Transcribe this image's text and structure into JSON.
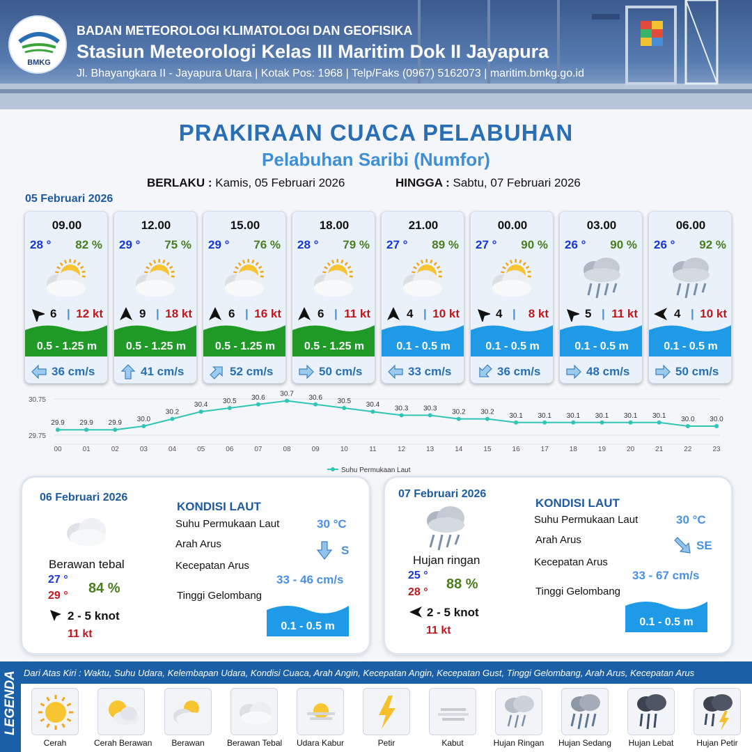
{
  "header": {
    "org": "BADAN METEOROLOGI KLIMATOLOGI DAN GEOFISIKA",
    "station": "Stasiun Meteorologi Kelas III Maritim Dok II Jayapura",
    "address": "Jl. Bhayangkara II - Jayapura Utara | Kotak Pos: 1968 | Telp/Faks (0967) 5162073 | maritim.bmkg.go.id",
    "logo_text": "BMKG"
  },
  "title": "PRAKIRAAN CUACA PELABUHAN",
  "subtitle": "Pelabuhan Saribi (Numfor)",
  "validity": {
    "from_label": "BERLAKU :",
    "from_value": "Kamis, 05 Februari 2026",
    "to_label": "HINGGA :",
    "to_value": "Sabtu, 07 Februari 2026"
  },
  "forecast_date": "05 Februari 2026",
  "hourly": [
    {
      "time": "09.00",
      "temp": "28 °",
      "hum": "82 %",
      "icon": "partly-cloudy-icon",
      "wind_dir": "wind-arrow-icon",
      "wind": "6",
      "gust": "12 kt",
      "wave": "0.5 - 1.25 m",
      "wave_class": "green",
      "current": "36 cm/s",
      "current_dir": "arrow-left-icon"
    },
    {
      "time": "12.00",
      "temp": "29 °",
      "hum": "75 %",
      "icon": "partly-cloudy-icon",
      "wind_dir": "wind-arrow-icon",
      "wind": "9",
      "gust": "18 kt",
      "wave": "0.5 - 1.25 m",
      "wave_class": "green",
      "current": "41 cm/s",
      "current_dir": "arrow-up-icon"
    },
    {
      "time": "15.00",
      "temp": "29 °",
      "hum": "76 %",
      "icon": "partly-cloudy-icon",
      "wind_dir": "wind-arrow-icon",
      "wind": "6",
      "gust": "16 kt",
      "wave": "0.5 - 1.25 m",
      "wave_class": "green",
      "current": "52 cm/s",
      "current_dir": "arrow-up-right-icon"
    },
    {
      "time": "18.00",
      "temp": "28 °",
      "hum": "79 %",
      "icon": "partly-cloudy-icon",
      "wind_dir": "wind-arrow-icon",
      "wind": "6",
      "gust": "11 kt",
      "wave": "0.5 - 1.25 m",
      "wave_class": "green",
      "current": "50 cm/s",
      "current_dir": "arrow-right-icon"
    },
    {
      "time": "21.00",
      "temp": "27 °",
      "hum": "89 %",
      "icon": "partly-cloudy-icon",
      "wind_dir": "wind-arrow-icon",
      "wind": "4",
      "gust": "10 kt",
      "wave": "0.1 - 0.5 m",
      "wave_class": "blue",
      "current": "33 cm/s",
      "current_dir": "arrow-left-icon"
    },
    {
      "time": "00.00",
      "temp": "27 °",
      "hum": "90 %",
      "icon": "partly-cloudy-icon",
      "wind_dir": "wind-arrow-icon",
      "wind": "4",
      "gust": "8 kt",
      "wave": "0.1 - 0.5 m",
      "wave_class": "blue",
      "current": "36 cm/s",
      "current_dir": "arrow-down-left-icon"
    },
    {
      "time": "03.00",
      "temp": "26 °",
      "hum": "90 %",
      "icon": "light-rain-icon",
      "wind_dir": "wind-arrow-icon",
      "wind": "5",
      "gust": "11 kt",
      "wave": "0.1 - 0.5 m",
      "wave_class": "blue",
      "current": "48 cm/s",
      "current_dir": "arrow-right-icon"
    },
    {
      "time": "06.00",
      "temp": "26 °",
      "hum": "92 %",
      "icon": "light-rain-icon",
      "wind_dir": "wind-arrow-icon",
      "wind": "4",
      "gust": "10 kt",
      "wave": "0.1 - 0.5 m",
      "wave_class": "blue",
      "current": "50 cm/s",
      "current_dir": "arrow-right-icon"
    }
  ],
  "chart_data": {
    "type": "line",
    "x": [
      "00",
      "01",
      "02",
      "03",
      "04",
      "05",
      "06",
      "07",
      "08",
      "09",
      "10",
      "11",
      "12",
      "13",
      "14",
      "15",
      "16",
      "17",
      "18",
      "19",
      "20",
      "21",
      "22",
      "23"
    ],
    "series": [
      {
        "name": "Suhu Permukaan Laut",
        "values": [
          29.9,
          29.9,
          29.9,
          30.0,
          30.2,
          30.4,
          30.5,
          30.6,
          30.7,
          30.6,
          30.5,
          30.4,
          30.3,
          30.3,
          30.2,
          30.2,
          30.1,
          30.1,
          30.1,
          30.1,
          30.1,
          30.1,
          30.0,
          30.0
        ]
      }
    ],
    "y_ticks": [
      "30.75",
      "29.75"
    ],
    "ylim": [
      29.75,
      30.75
    ],
    "legend": "bottom-center",
    "color": "#2ec4b6"
  },
  "day2": {
    "date": "06 Februari 2026",
    "condition": "Berawan tebal",
    "icon": "overcast-cloud-icon",
    "tmin": "27 °",
    "tmax": "29 °",
    "hum": "84 %",
    "wind": "2  - 5 knot",
    "gust": "11 kt",
    "kondisi_title": "KONDISI LAUT",
    "labels": {
      "sst": "Suhu Permukaan Laut",
      "dir": "Arah Arus",
      "speed": "Kecepatan Arus",
      "wave": "Tinggi Gelombang"
    },
    "sst": "30 °C",
    "current_dir": "S",
    "current_speed": "33 - 46 cm/s",
    "wave": "0.1 - 0.5 m"
  },
  "day3": {
    "date": "07 Februari 2026",
    "condition": "Hujan ringan",
    "icon": "light-rain-icon",
    "tmin": "25 °",
    "tmax": "28 °",
    "hum": "88 %",
    "wind": "2  - 5 knot",
    "gust": "11 kt",
    "kondisi_title": "KONDISI LAUT",
    "labels": {
      "sst": "Suhu Permukaan Laut",
      "dir": "Arah Arus",
      "speed": "Kecepatan Arus",
      "wave": "Tinggi Gelombang"
    },
    "sst": "30 °C",
    "current_dir": "SE",
    "current_speed": "33  - 67 cm/s",
    "wave": "0.1 - 0.5 m"
  },
  "legend": {
    "side": "LEGENDA",
    "description": "Dari Atas Kiri : Waktu, Suhu Udara, Kelembapan Udara, Kondisi Cuaca, Arah Angin, Kecepatan Angin, Kecepatan Gust, Tinggi Gelombang, Arah Arus, Kecepatan Arus",
    "items": [
      "Cerah",
      "Cerah Berawan",
      "Berawan",
      "Berawan Tebal",
      "Udara Kabur",
      "Petir",
      "Kabut",
      "Hujan Ringan",
      "Hujan Sedang",
      "Hujan Lebat",
      "Hujan Petir"
    ]
  },
  "colors": {
    "green_wave": "#1f9a27",
    "blue_wave": "#1e9ae6",
    "title": "#2a6fb5",
    "gust": "#c0171d",
    "temp": "#1b34d6",
    "humidity": "#4a7d1f"
  }
}
